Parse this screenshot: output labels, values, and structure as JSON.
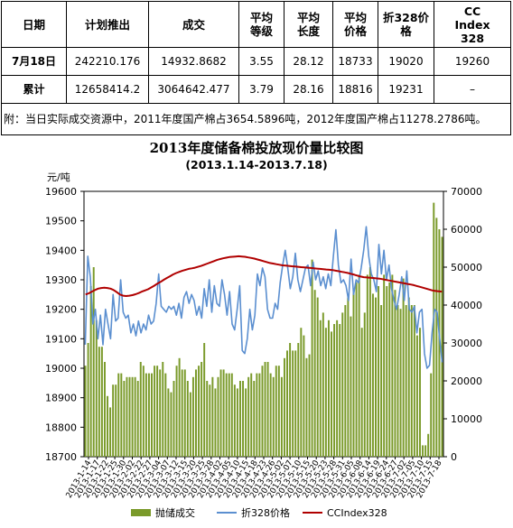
{
  "table": {
    "headers": [
      {
        "lines": [
          "日期"
        ]
      },
      {
        "lines": [
          "计划推出"
        ]
      },
      {
        "lines": [
          "成交"
        ]
      },
      {
        "lines": [
          "平均",
          "等级"
        ]
      },
      {
        "lines": [
          "平均",
          "长度"
        ]
      },
      {
        "lines": [
          "平均",
          "价格"
        ]
      },
      {
        "lines": [
          "折328价",
          "格"
        ]
      },
      {
        "lines": [
          "CC",
          "Index",
          "328"
        ]
      }
    ],
    "rows": [
      {
        "label": "7月18日",
        "cells": [
          "242210.176",
          "14932.8682",
          "3.55",
          "28.12",
          "18733",
          "19020",
          "19260"
        ]
      },
      {
        "label": "累计",
        "cells": [
          "12658414.2",
          "3064642.477",
          "3.79",
          "28.16",
          "18816",
          "19231",
          "–"
        ]
      }
    ],
    "note": "附：当日实际成交资源中，2011年度国产棉占3654.5896吨，2012年度国产棉占11278.2786吨。"
  },
  "chart_data": {
    "type": "bar+line",
    "title": "2013年度储备棉投放现价量比较图",
    "subtitle": "(2013.1.14-2013.7.18)",
    "ylabel_left": "元/吨",
    "ylim_left": [
      18700,
      19600
    ],
    "yticks_left": [
      "18700",
      "18800",
      "18900",
      "19000",
      "19100",
      "19200",
      "19300",
      "19400",
      "19500",
      "19600"
    ],
    "ylim_right": [
      0,
      70000
    ],
    "yticks_right": [
      "0",
      "10000",
      "20000",
      "30000",
      "40000",
      "50000",
      "60000",
      "70000"
    ],
    "x_tick_labels": [
      "2013-1-14",
      "2013-1-17",
      "2013-1-22",
      "2013-1-25",
      "2013-1-30",
      "2013-2-02",
      "2013-2-22",
      "2013-2-27",
      "2013-3-04",
      "2013-3-07",
      "2013-3-12",
      "2013-3-15",
      "2013-3-20",
      "2013-3-25",
      "2013-3-28",
      "2013-4-02",
      "2013-4-05",
      "2013-4-10",
      "2013-4-15",
      "2013-4-18",
      "2013-4-23",
      "2013-4-26",
      "2013-5-02",
      "2013-5-07",
      "2013-5-10",
      "2013-5-15",
      "2013-5-20",
      "2013-5-23",
      "2013-5-28",
      "2013-5-31",
      "2013-6-05",
      "2013-6-08",
      "2013-6-14",
      "2013-6-19",
      "2013-6-24",
      "2013-6-27",
      "2013-7-02",
      "2013-7-05",
      "2013-7-10",
      "2013-7-15",
      "2013-7-18"
    ],
    "series": [
      {
        "name": "抛储成交",
        "kind": "bar",
        "axis": "right",
        "color": "#7a9a2a",
        "values": [
          24000,
          30000,
          45000,
          50000,
          36000,
          29000,
          29000,
          25000,
          16000,
          13000,
          19000,
          19000,
          22000,
          22000,
          20000,
          21000,
          21000,
          21000,
          21000,
          20000,
          25000,
          24000,
          22000,
          22000,
          22000,
          24000,
          24000,
          23000,
          25000,
          22000,
          18000,
          17000,
          20000,
          24000,
          26000,
          23000,
          23000,
          20000,
          17000,
          21000,
          23000,
          24000,
          25000,
          30000,
          20000,
          19000,
          21000,
          18000,
          21000,
          23000,
          23000,
          22000,
          22000,
          22000,
          19000,
          18000,
          20000,
          20000,
          18000,
          21000,
          22000,
          20000,
          22000,
          22000,
          24000,
          25000,
          25000,
          22000,
          21000,
          24000,
          24000,
          21000,
          26000,
          28000,
          30000,
          28000,
          28000,
          30000,
          34000,
          32000,
          26000,
          27000,
          52000,
          44000,
          42000,
          36000,
          38000,
          34000,
          36000,
          33000,
          35000,
          36000,
          35000,
          38000,
          40000,
          42000,
          37000,
          44000,
          46000,
          48000,
          34000,
          38000,
          48000,
          50000,
          43000,
          42000,
          45000,
          40000,
          48000,
          45000,
          46000,
          48000,
          44000,
          40000,
          39000,
          47000,
          40000,
          42000,
          40000,
          40000,
          32000,
          34000,
          3000,
          3000,
          6000,
          22000,
          67000,
          63000,
          60000,
          58000
        ]
      },
      {
        "name": "折328价格",
        "kind": "line",
        "axis": "left",
        "color": "#5b8fd0",
        "values": [
          19080,
          19380,
          19310,
          19150,
          19200,
          19100,
          19180,
          19080,
          19200,
          19150,
          19100,
          19250,
          19160,
          19170,
          19300,
          19190,
          19170,
          19180,
          19120,
          19150,
          19110,
          19160,
          19120,
          19150,
          19130,
          19180,
          19150,
          19160,
          19220,
          19320,
          19210,
          19200,
          19190,
          19210,
          19200,
          19210,
          19180,
          19220,
          19170,
          19240,
          19260,
          19220,
          19250,
          19230,
          19180,
          19210,
          19170,
          19270,
          19210,
          19300,
          19190,
          19280,
          19220,
          19210,
          19300,
          19250,
          19180,
          19260,
          19150,
          19130,
          19200,
          19280,
          19060,
          19050,
          19100,
          19200,
          19130,
          19180,
          19320,
          19280,
          19340,
          19310,
          19200,
          19170,
          19170,
          19220,
          19200,
          19290,
          19350,
          19400,
          19340,
          19270,
          19310,
          19390,
          19300,
          19260,
          19300,
          19340,
          19350,
          19280,
          19360,
          19300,
          19330,
          19280,
          19310,
          19270,
          19320,
          19280,
          19380,
          19470,
          19350,
          19290,
          19300,
          19280,
          19230,
          19370,
          19250,
          19300,
          19290,
          19340,
          19400,
          19480,
          19380,
          19320,
          19300,
          19260,
          19420,
          19320,
          19400,
          19300,
          19350,
          19270,
          19230,
          19200,
          19250,
          19310,
          19230,
          19330,
          19200,
          19190,
          19210,
          19120,
          19190,
          19200,
          19050,
          19000,
          19010,
          19120,
          19200,
          19190,
          19100,
          19020
        ]
      },
      {
        "name": "CCIndex328",
        "kind": "line",
        "axis": "left",
        "color": "#b00000",
        "values": [
          19250,
          19254,
          19260,
          19265,
          19270,
          19272,
          19273,
          19272,
          19270,
          19265,
          19258,
          19250,
          19246,
          19245,
          19246,
          19248,
          19251,
          19255,
          19260,
          19264,
          19268,
          19274,
          19280,
          19287,
          19293,
          19300,
          19306,
          19312,
          19318,
          19323,
          19327,
          19331,
          19334,
          19337,
          19339,
          19341,
          19344,
          19347,
          19351,
          19355,
          19359,
          19363,
          19367,
          19370,
          19373,
          19375,
          19377,
          19378,
          19379,
          19380,
          19379,
          19378,
          19376,
          19374,
          19372,
          19369,
          19366,
          19363,
          19360,
          19357,
          19355,
          19353,
          19351,
          19349,
          19348,
          19347,
          19346,
          19345,
          19344,
          19343,
          19342,
          19341,
          19340,
          19339,
          19338,
          19337,
          19336,
          19335,
          19334,
          19333,
          19331,
          19329,
          19327,
          19325,
          19323,
          19320,
          19317,
          19314,
          19311,
          19309,
          19308,
          19307,
          19306,
          19305,
          19304,
          19302,
          19300,
          19298,
          19296,
          19294,
          19292,
          19290,
          19288,
          19286,
          19284,
          19282,
          19279,
          19276,
          19273,
          19270,
          19267,
          19264,
          19262,
          19261,
          19260
        ]
      }
    ],
    "legend": [
      "抛储成交",
      "折328价格",
      "CCIndex328"
    ],
    "legend_position": "bottom",
    "grid": false
  }
}
